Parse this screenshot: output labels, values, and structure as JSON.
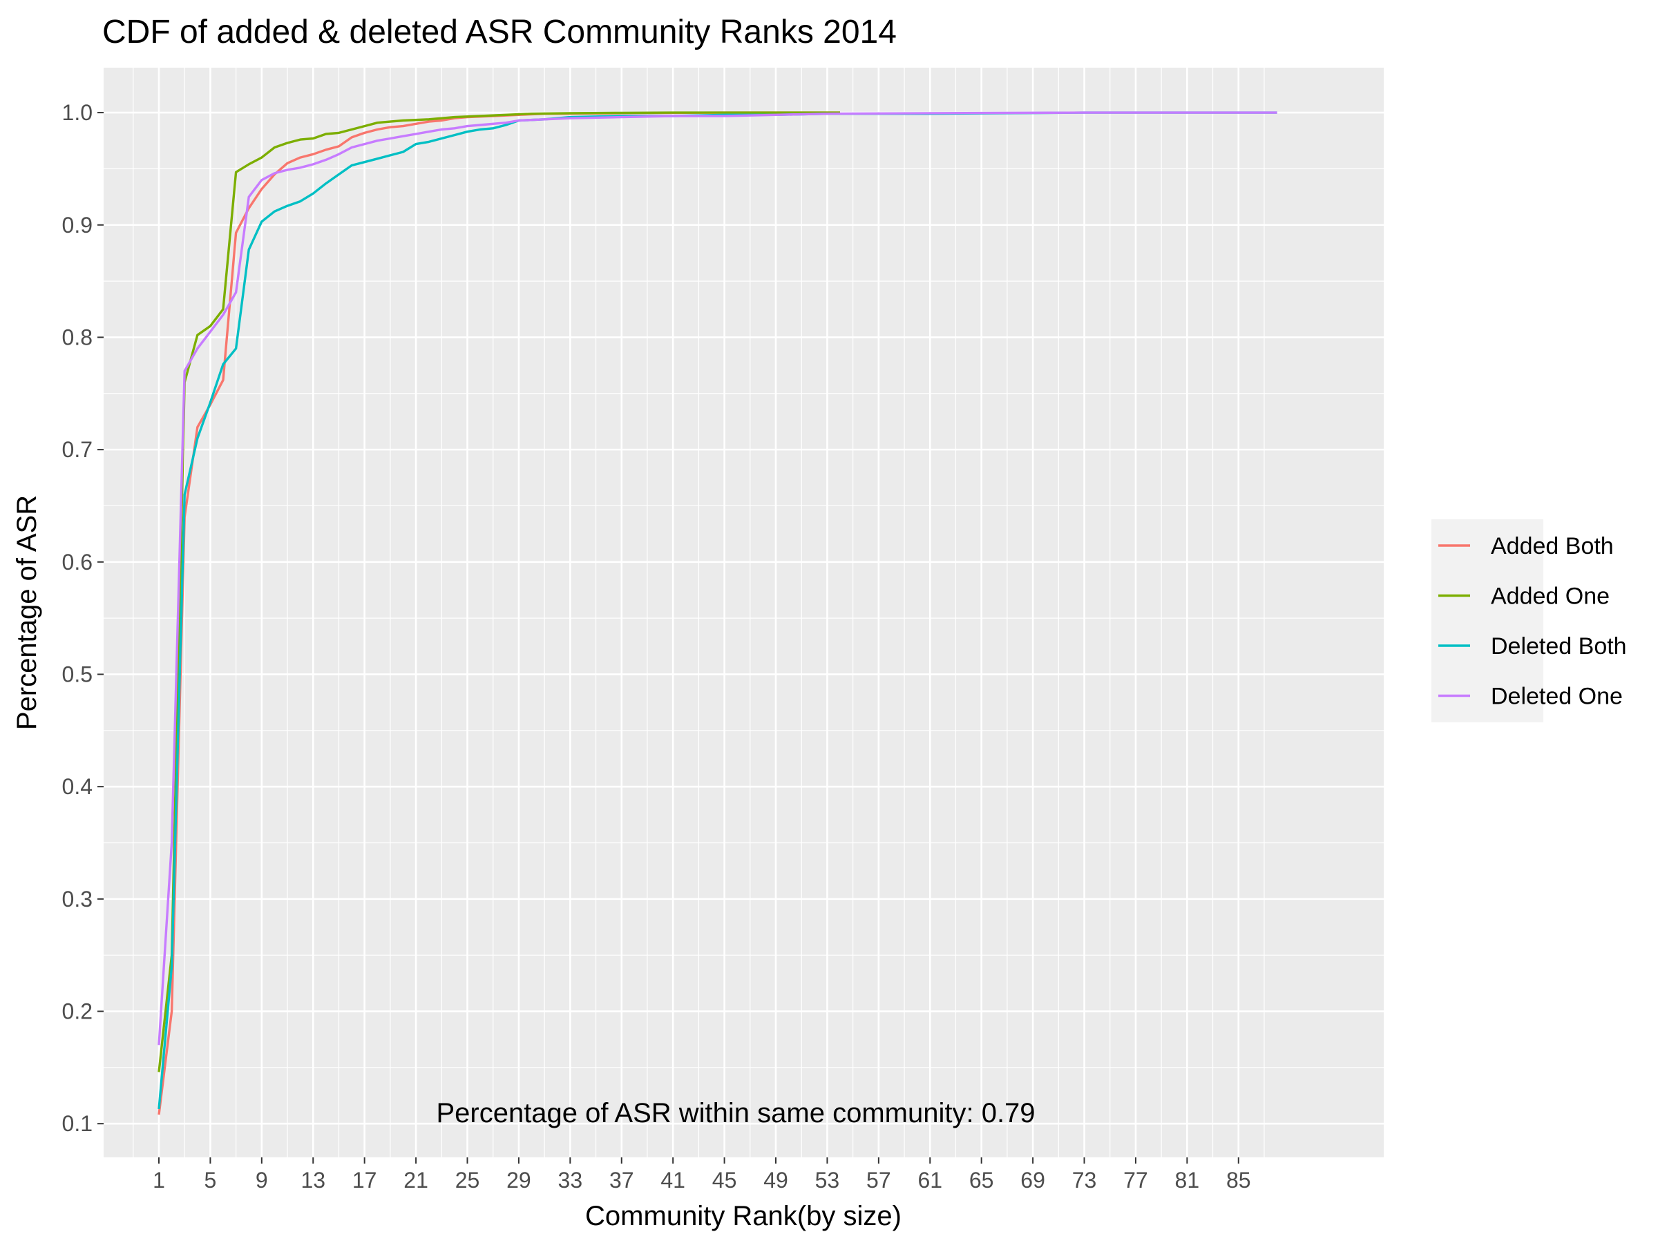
{
  "chart_data": {
    "type": "line",
    "title": "CDF of added & deleted ASR Community Ranks 2014",
    "xlabel": "Community Rank(by size)",
    "ylabel": "Percentage of ASR",
    "xlim": [
      -3.3,
      96.3
    ],
    "ylim": [
      0.07,
      1.04
    ],
    "x_ticks": [
      1,
      5,
      9,
      13,
      17,
      21,
      25,
      29,
      33,
      37,
      41,
      45,
      49,
      53,
      57,
      61,
      65,
      69,
      73,
      77,
      81,
      85
    ],
    "x_tick_labels": [
      "1",
      "5",
      "9",
      "13",
      "17",
      "21",
      "25",
      "29",
      "33",
      "37",
      "41",
      "45",
      "49",
      "53",
      "57",
      "61",
      "65",
      "69",
      "73",
      "77",
      "81",
      "85"
    ],
    "y_ticks": [
      0.1,
      0.2,
      0.3,
      0.4,
      0.5,
      0.6,
      0.7,
      0.8,
      0.9,
      1.0
    ],
    "y_tick_labels": [
      "0.1",
      "0.2",
      "0.3",
      "0.4",
      "0.5",
      "0.6",
      "0.7",
      "0.8",
      "0.9",
      "1.0"
    ],
    "grid": true,
    "legend_position": "right",
    "annotation": "Percentage of ASR within same community: 0.79",
    "series": [
      {
        "name": "Added Both",
        "color": "#F8766D",
        "x": [
          1,
          2,
          3,
          4,
          5,
          6,
          7,
          8,
          9,
          10,
          11,
          12,
          13,
          14,
          15,
          16,
          17,
          18,
          19,
          20,
          21,
          22,
          23,
          24,
          25,
          27,
          29,
          31,
          33,
          37,
          41,
          45,
          49,
          54
        ],
        "y": [
          0.108,
          0.2,
          0.64,
          0.72,
          0.74,
          0.762,
          0.893,
          0.915,
          0.932,
          0.945,
          0.955,
          0.96,
          0.963,
          0.967,
          0.97,
          0.978,
          0.982,
          0.985,
          0.987,
          0.988,
          0.99,
          0.992,
          0.993,
          0.995,
          0.996,
          0.997,
          0.998,
          0.999,
          0.999,
          0.9995,
          0.9998,
          1.0,
          1.0,
          1.0
        ]
      },
      {
        "name": "Added One",
        "color": "#7CAE00",
        "x": [
          1,
          2,
          3,
          4,
          5,
          6,
          7,
          8,
          9,
          10,
          11,
          12,
          13,
          14,
          15,
          16,
          17,
          18,
          19,
          20,
          22,
          24,
          26,
          28,
          30,
          33,
          37,
          41,
          45,
          49,
          54
        ],
        "y": [
          0.146,
          0.25,
          0.76,
          0.802,
          0.81,
          0.825,
          0.947,
          0.954,
          0.96,
          0.969,
          0.973,
          0.976,
          0.977,
          0.981,
          0.982,
          0.985,
          0.988,
          0.991,
          0.992,
          0.993,
          0.994,
          0.996,
          0.997,
          0.998,
          0.999,
          0.9995,
          0.9998,
          1.0,
          1.0,
          1.0,
          1.0
        ]
      },
      {
        "name": "Deleted Both",
        "color": "#00BFC4",
        "x": [
          1,
          2,
          3,
          4,
          5,
          6,
          7,
          8,
          9,
          10,
          11,
          12,
          13,
          14,
          15,
          16,
          17,
          18,
          19,
          20,
          21,
          22,
          23,
          24,
          25,
          26,
          27,
          28,
          29,
          31,
          33,
          37,
          41,
          45,
          49,
          53,
          61,
          73,
          88
        ],
        "y": [
          0.113,
          0.24,
          0.66,
          0.71,
          0.742,
          0.776,
          0.79,
          0.878,
          0.903,
          0.912,
          0.917,
          0.921,
          0.928,
          0.937,
          0.945,
          0.953,
          0.956,
          0.959,
          0.962,
          0.965,
          0.972,
          0.974,
          0.977,
          0.98,
          0.983,
          0.985,
          0.986,
          0.989,
          0.993,
          0.994,
          0.996,
          0.997,
          0.997,
          0.998,
          0.998,
          0.999,
          0.999,
          1.0,
          1.0
        ]
      },
      {
        "name": "Deleted One",
        "color": "#C77CFF",
        "x": [
          1,
          2,
          3,
          4,
          5,
          6,
          7,
          8,
          9,
          10,
          11,
          12,
          13,
          14,
          15,
          16,
          17,
          18,
          19,
          20,
          21,
          22,
          23,
          24,
          25,
          26,
          27,
          28,
          29,
          31,
          33,
          37,
          41,
          45,
          49,
          53,
          61,
          73,
          88
        ],
        "y": [
          0.17,
          0.35,
          0.77,
          0.79,
          0.805,
          0.82,
          0.84,
          0.925,
          0.94,
          0.946,
          0.949,
          0.951,
          0.954,
          0.958,
          0.963,
          0.969,
          0.972,
          0.975,
          0.977,
          0.979,
          0.981,
          0.983,
          0.985,
          0.986,
          0.988,
          0.989,
          0.99,
          0.991,
          0.993,
          0.994,
          0.995,
          0.996,
          0.997,
          0.997,
          0.998,
          0.999,
          0.9995,
          1.0,
          1.0
        ]
      }
    ]
  }
}
